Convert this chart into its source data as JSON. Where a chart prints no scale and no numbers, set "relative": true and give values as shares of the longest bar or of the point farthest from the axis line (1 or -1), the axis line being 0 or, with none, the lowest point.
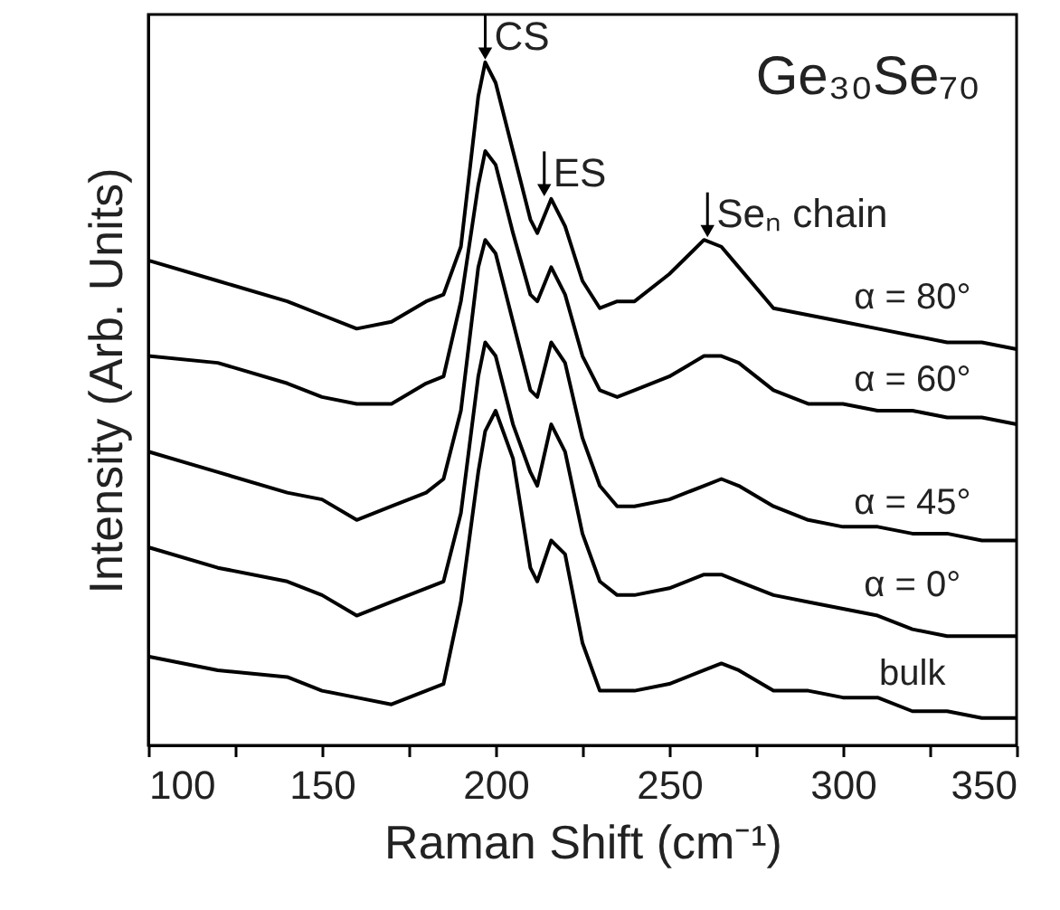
{
  "chart_data": {
    "type": "line",
    "relative": true,
    "xlabel": "Raman Shift (cm⁻¹)",
    "ylabel": "Intensity (Arb. Units)",
    "x": [
      100,
      120,
      140,
      150,
      160,
      170,
      180,
      185,
      190,
      195,
      197,
      200,
      205,
      210,
      212,
      216,
      220,
      225,
      230,
      235,
      240,
      250,
      260,
      265,
      270,
      280,
      290,
      300,
      310,
      320,
      330,
      340,
      350
    ],
    "xlim": [
      100,
      350
    ],
    "xticks": [
      100,
      {
        "value": 125,
        "label": null
      },
      150,
      {
        "value": 175,
        "label": null
      },
      200,
      {
        "value": 225,
        "label": null
      },
      250,
      {
        "value": 275,
        "label": null
      },
      300,
      {
        "value": 325,
        "label": null
      },
      350
    ],
    "grid": false,
    "marker": "none",
    "line_style": "solid",
    "series": [
      {
        "name": "α = 80°",
        "color": "#000000",
        "values": [
          0.71,
          0.68,
          0.65,
          0.63,
          0.61,
          0.62,
          0.65,
          0.66,
          0.73,
          0.95,
          1.0,
          0.97,
          0.87,
          0.77,
          0.75,
          0.8,
          0.76,
          0.68,
          0.64,
          0.65,
          0.65,
          0.69,
          0.74,
          0.73,
          0.7,
          0.64,
          0.63,
          0.62,
          0.61,
          0.6,
          0.59,
          0.59,
          0.58
        ]
      },
      {
        "name": "α = 60°",
        "color": "#000000",
        "values": [
          0.57,
          0.56,
          0.53,
          0.51,
          0.5,
          0.5,
          0.53,
          0.54,
          0.65,
          0.82,
          0.87,
          0.85,
          0.75,
          0.66,
          0.65,
          0.7,
          0.66,
          0.57,
          0.52,
          0.51,
          0.52,
          0.54,
          0.57,
          0.57,
          0.56,
          0.52,
          0.5,
          0.5,
          0.49,
          0.49,
          0.48,
          0.48,
          0.47
        ]
      },
      {
        "name": "α = 45°",
        "color": "#000000",
        "values": [
          0.43,
          0.4,
          0.37,
          0.36,
          0.33,
          0.35,
          0.37,
          0.39,
          0.49,
          0.7,
          0.74,
          0.72,
          0.62,
          0.52,
          0.51,
          0.59,
          0.56,
          0.45,
          0.38,
          0.35,
          0.35,
          0.36,
          0.38,
          0.39,
          0.38,
          0.35,
          0.33,
          0.32,
          0.32,
          0.31,
          0.31,
          0.3,
          0.3
        ]
      },
      {
        "name": "α = 0°",
        "color": "#000000",
        "values": [
          0.29,
          0.26,
          0.24,
          0.22,
          0.19,
          0.21,
          0.23,
          0.24,
          0.34,
          0.54,
          0.59,
          0.57,
          0.47,
          0.4,
          0.38,
          0.47,
          0.43,
          0.31,
          0.24,
          0.22,
          0.22,
          0.23,
          0.25,
          0.25,
          0.24,
          0.22,
          0.21,
          0.2,
          0.19,
          0.17,
          0.16,
          0.16,
          0.16
        ]
      },
      {
        "name": "bulk",
        "color": "#000000",
        "values": [
          0.13,
          0.11,
          0.1,
          0.08,
          0.07,
          0.06,
          0.08,
          0.09,
          0.21,
          0.4,
          0.46,
          0.49,
          0.42,
          0.26,
          0.24,
          0.3,
          0.28,
          0.15,
          0.08,
          0.08,
          0.08,
          0.09,
          0.11,
          0.12,
          0.11,
          0.08,
          0.08,
          0.07,
          0.07,
          0.05,
          0.05,
          0.04,
          0.04
        ]
      }
    ],
    "annotations": [
      {
        "text": "CS",
        "x": 197,
        "y": 1.0
      },
      {
        "text": "ES",
        "x": 214,
        "y": 0.8
      },
      {
        "text": "Seₙ chain",
        "x": 261,
        "y": 0.74
      },
      "Ge₃₀Se₇₀"
    ]
  }
}
